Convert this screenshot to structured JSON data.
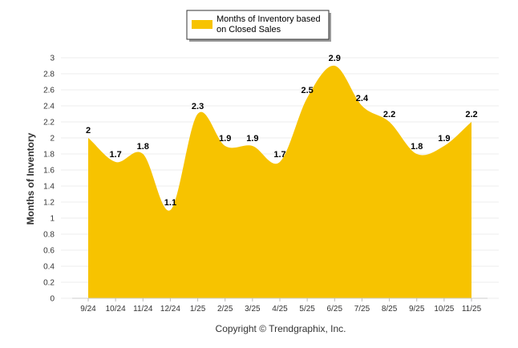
{
  "chart_data": {
    "type": "area",
    "categories": [
      "9/24",
      "10/24",
      "11/24",
      "12/24",
      "1/25",
      "2/25",
      "3/25",
      "4/25",
      "5/25",
      "6/25",
      "7/25",
      "8/25",
      "9/25",
      "10/25",
      "11/25"
    ],
    "series": [
      {
        "name": "Months of Inventory based on Closed Sales",
        "values": [
          2,
          1.7,
          1.8,
          1.1,
          2.3,
          1.9,
          1.9,
          1.7,
          2.5,
          2.9,
          2.4,
          2.2,
          1.8,
          1.9,
          2.2
        ],
        "color": "#F7C300"
      }
    ],
    "data_labels": [
      "2",
      "1.7",
      "1.8",
      "1.1",
      "2.3",
      "1.9",
      "1.9",
      "1.7",
      "2.5",
      "2.9",
      "2.4",
      "2.2",
      "1.8",
      "1.9",
      "2.2"
    ],
    "ylabel": "Months of Inventory",
    "xlabel": "",
    "ylim": [
      0,
      3
    ],
    "yticks": [
      "0",
      "0.2",
      "0.4",
      "0.6",
      "0.8",
      "1",
      "1.2",
      "1.4",
      "1.6",
      "1.8",
      "2",
      "2.2",
      "2.4",
      "2.6",
      "2.8",
      "3"
    ],
    "grid": true,
    "legend_position": "top-center",
    "legend_lines": [
      "Months of Inventory based",
      "on Closed Sales"
    ],
    "footer": "Copyright © Trendgraphix, Inc."
  }
}
